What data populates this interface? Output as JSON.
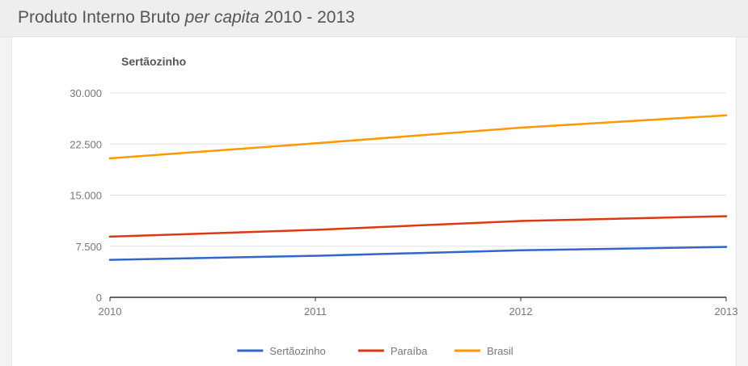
{
  "header": {
    "title_prefix": "Produto Interno Bruto ",
    "title_emphasis": "per capita",
    "title_suffix": " 2010 - 2013"
  },
  "chart_data": {
    "type": "line",
    "title": "Sertãozinho",
    "xlabel": "",
    "ylabel": "",
    "x": [
      "2010",
      "2011",
      "2012",
      "2013"
    ],
    "y_ticks": [
      "0",
      "7.500",
      "15.000",
      "22.500",
      "30.000"
    ],
    "y_tick_values": [
      0,
      7500,
      15000,
      22500,
      30000
    ],
    "ylim": [
      0,
      30000
    ],
    "grid": true,
    "legend_position": "bottom",
    "series": [
      {
        "name": "Sertãozinho",
        "color": "#3366cc",
        "values": [
          5500,
          6100,
          6900,
          7400
        ]
      },
      {
        "name": "Paraíba",
        "color": "#dc3912",
        "values": [
          8900,
          9900,
          11200,
          11900
        ]
      },
      {
        "name": "Brasil",
        "color": "#ff9900",
        "values": [
          20400,
          22600,
          24900,
          26700
        ]
      }
    ]
  }
}
